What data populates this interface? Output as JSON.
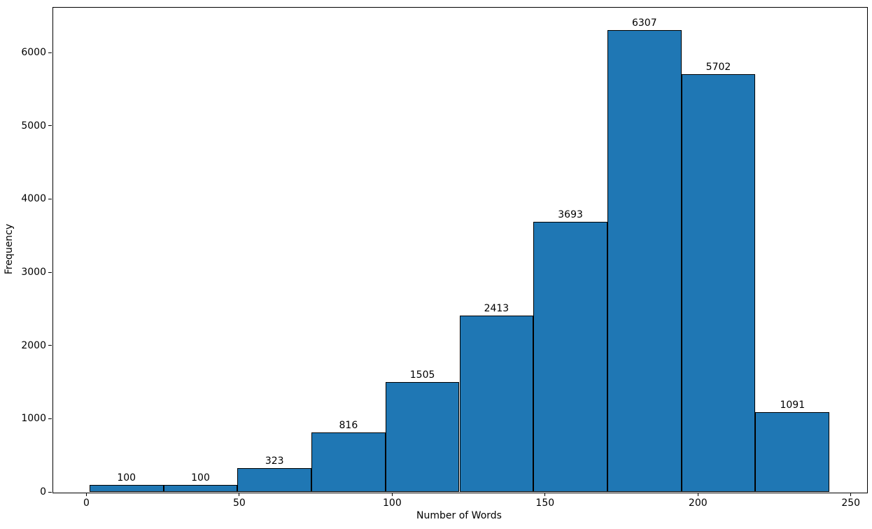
{
  "figure": {
    "background": "#ffffff"
  },
  "chart_data": {
    "type": "bar",
    "subtype": "histogram",
    "title": "",
    "xlabel": "Number of Words",
    "ylabel": "Frequency",
    "bin_edges": [
      1.0,
      25.2,
      49.4,
      73.6,
      97.8,
      122.0,
      146.2,
      170.4,
      194.6,
      218.8,
      243.0
    ],
    "values": [
      100,
      100,
      323,
      816,
      1505,
      2413,
      3693,
      6307,
      5702,
      1091
    ],
    "bar_labels": [
      "100",
      "100",
      "323",
      "816",
      "1505",
      "2413",
      "3693",
      "6307",
      "5702",
      "1091"
    ],
    "x_ticks": [
      0,
      50,
      100,
      150,
      200,
      250
    ],
    "y_ticks": [
      0,
      1000,
      2000,
      3000,
      4000,
      5000,
      6000
    ],
    "xlim": [
      -11.1,
      255.1
    ],
    "ylim": [
      0,
      6622
    ],
    "grid": false,
    "legend": null,
    "colors": {
      "bar_fill": "#1f77b4",
      "bar_edge": "#000000",
      "axis": "#000000",
      "text": "#000000",
      "background": "#ffffff"
    }
  }
}
